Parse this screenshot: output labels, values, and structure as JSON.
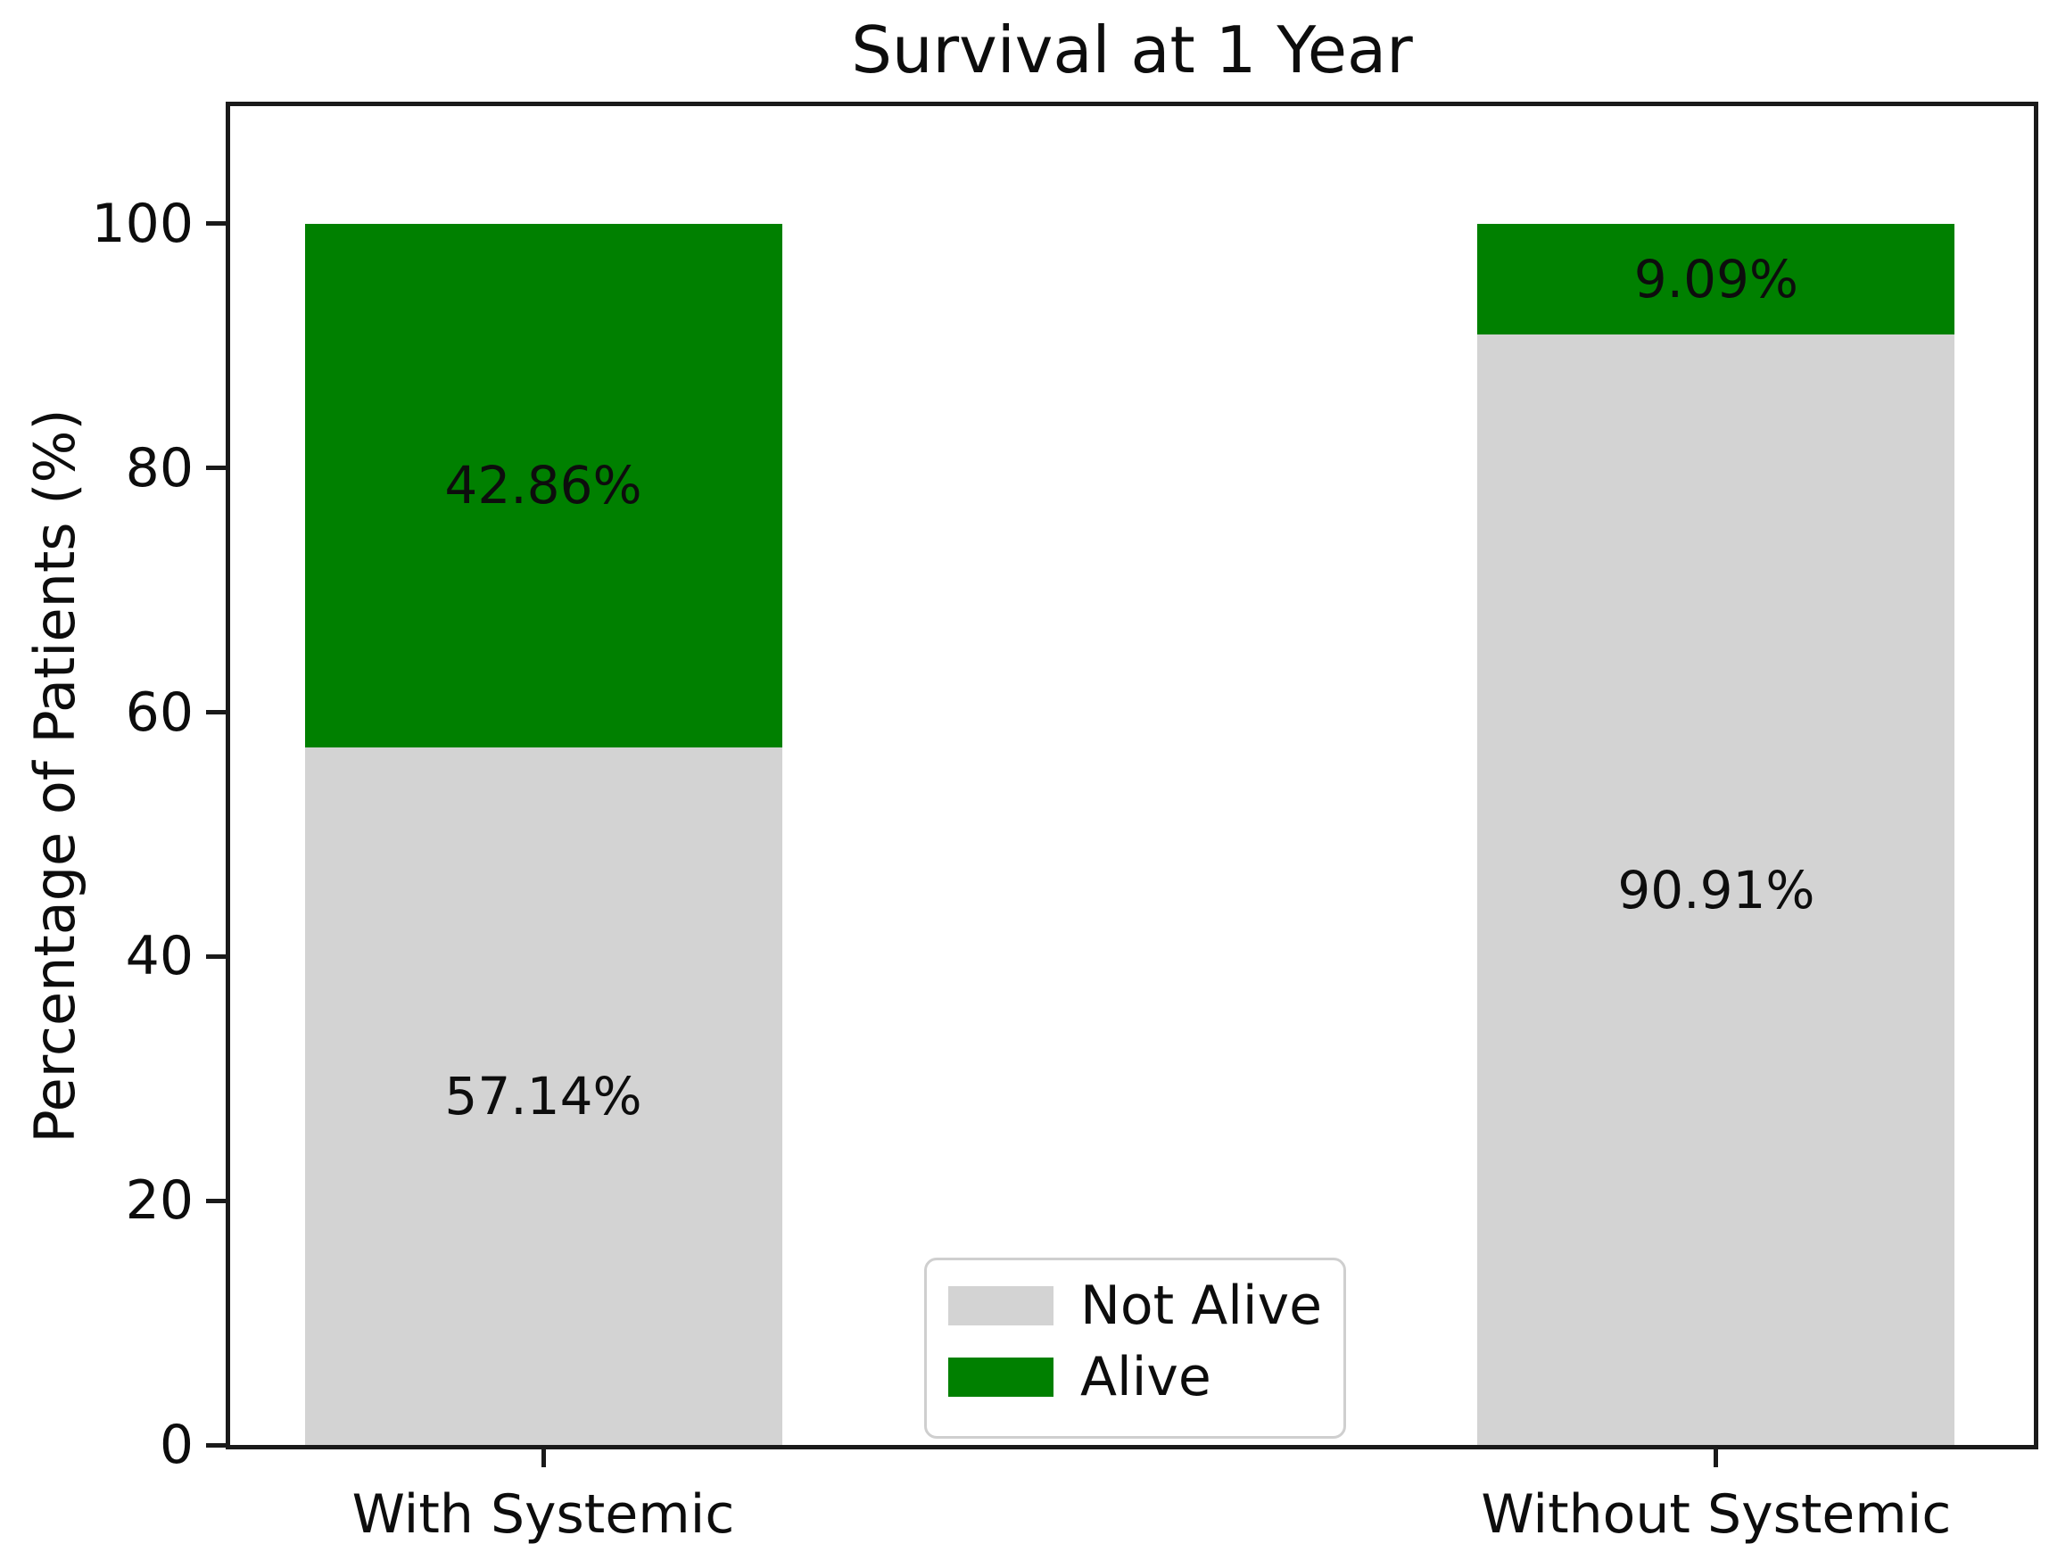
{
  "figure": {
    "background": "#ffffff",
    "axis_color": "#1a1a1a",
    "text_color": "#0d0d0d"
  },
  "chart_data": {
    "type": "bar",
    "stacked": true,
    "title": "Survival at 1 Year",
    "ylabel": "Percentage of Patients (%)",
    "xlabel": "",
    "categories": [
      "With Systemic",
      "Without Systemic"
    ],
    "series": [
      {
        "name": "Not Alive",
        "color": "#d3d3d3",
        "values": [
          57.14,
          90.91
        ],
        "labels": [
          "57.14%",
          "90.91%"
        ]
      },
      {
        "name": "Alive",
        "color": "#008000",
        "values": [
          42.86,
          9.09
        ],
        "labels": [
          "42.86%",
          "9.09%"
        ]
      }
    ],
    "ylim": [
      0,
      110
    ],
    "y_ticks": [
      0,
      20,
      40,
      60,
      80,
      100
    ],
    "grid": false,
    "legend": {
      "position": "lower center",
      "entries": [
        {
          "label": "Not Alive",
          "color": "#d3d3d3"
        },
        {
          "label": "Alive",
          "color": "#008000"
        }
      ]
    }
  }
}
